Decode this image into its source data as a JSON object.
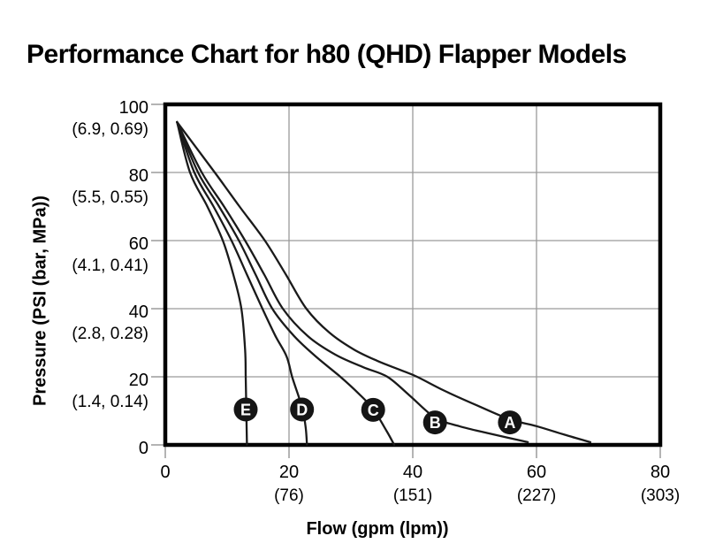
{
  "title": "Performance Chart for h80 (QHD) Flapper Models",
  "colors": {
    "background": "#ffffff",
    "text": "#000000",
    "grid": "#9a9a9a",
    "tick": "#8c8c8c",
    "frame": "#000000",
    "curve": "#1a1a1a",
    "badge_bg": "#151515",
    "badge_text": "#ffffff"
  },
  "chart_data": {
    "type": "line",
    "title": "Performance Chart for h80 (QHD) Flapper Models",
    "xlabel": "Flow (gpm (lpm))",
    "ylabel": "Pressure (PSI (bar, MPa))",
    "xlim": [
      0,
      80
    ],
    "ylim": [
      0,
      100
    ],
    "grid": true,
    "legend": "inline-badges",
    "x_ticks": [
      {
        "value": 0,
        "label": "0",
        "sub": ""
      },
      {
        "value": 20,
        "label": "20",
        "sub": "(76)"
      },
      {
        "value": 40,
        "label": "40",
        "sub": "(151)"
      },
      {
        "value": 60,
        "label": "60",
        "sub": "(227)"
      },
      {
        "value": 80,
        "label": "80",
        "sub": "(303)"
      }
    ],
    "y_ticks": [
      {
        "value": 100,
        "label": "100",
        "sub": "(6.9, 0.69)"
      },
      {
        "value": 80,
        "label": "80",
        "sub": "(5.5, 0.55)"
      },
      {
        "value": 60,
        "label": "60",
        "sub": "(4.1, 0.41)"
      },
      {
        "value": 40,
        "label": "40",
        "sub": "(2.8, 0.28)"
      },
      {
        "value": 20,
        "label": "20",
        "sub": "(1.4, 0.14)"
      },
      {
        "value": 0,
        "label": "0",
        "sub": ""
      }
    ],
    "series": [
      {
        "name": "E",
        "badge": {
          "x": 13.0,
          "y": 10.4
        },
        "points": [
          [
            1.9,
            94.8
          ],
          [
            4.0,
            80
          ],
          [
            6.8,
            70
          ],
          [
            9.3,
            60
          ],
          [
            11.0,
            50
          ],
          [
            12.3,
            40
          ],
          [
            12.9,
            28
          ],
          [
            13.0,
            20
          ],
          [
            13.1,
            10
          ],
          [
            13.2,
            0
          ]
        ]
      },
      {
        "name": "D",
        "badge": {
          "x": 22.1,
          "y": 10.4
        },
        "points": [
          [
            1.9,
            94.8
          ],
          [
            4.7,
            80
          ],
          [
            7.8,
            70
          ],
          [
            10.7,
            60
          ],
          [
            13.2,
            50
          ],
          [
            15.7,
            40
          ],
          [
            17.8,
            32
          ],
          [
            19.6,
            26
          ],
          [
            20.5,
            20
          ],
          [
            21.6,
            14
          ],
          [
            22.2,
            10.4
          ],
          [
            22.7,
            5
          ],
          [
            22.9,
            0
          ]
        ]
      },
      {
        "name": "C",
        "badge": {
          "x": 33.6,
          "y": 10.3
        },
        "points": [
          [
            1.9,
            94.8
          ],
          [
            5.3,
            80
          ],
          [
            8.7,
            70
          ],
          [
            11.9,
            60
          ],
          [
            14.6,
            50
          ],
          [
            17.3,
            40
          ],
          [
            20.8,
            32
          ],
          [
            24.3,
            26
          ],
          [
            28.3,
            20
          ],
          [
            31.3,
            15
          ],
          [
            33.6,
            10.5
          ],
          [
            35.8,
            4
          ],
          [
            37.0,
            0
          ]
        ]
      },
      {
        "name": "B",
        "badge": {
          "x": 43.6,
          "y": 6.6
        },
        "points": [
          [
            1.9,
            94.8
          ],
          [
            5.9,
            80
          ],
          [
            9.5,
            70
          ],
          [
            12.9,
            60
          ],
          [
            16.0,
            50
          ],
          [
            19.0,
            40
          ],
          [
            23.0,
            32
          ],
          [
            27.5,
            26.5
          ],
          [
            32.0,
            22.8
          ],
          [
            35.9,
            20
          ],
          [
            39.5,
            14.5
          ],
          [
            43.6,
            8
          ],
          [
            47.5,
            5.5
          ],
          [
            52.0,
            3.5
          ],
          [
            58.6,
            0.8
          ]
        ]
      },
      {
        "name": "A",
        "badge": {
          "x": 55.7,
          "y": 6.6
        },
        "points": [
          [
            1.9,
            94.8
          ],
          [
            8.0,
            80
          ],
          [
            12.0,
            70
          ],
          [
            16.1,
            60
          ],
          [
            19.5,
            50
          ],
          [
            22.8,
            40
          ],
          [
            26.5,
            33
          ],
          [
            30.5,
            28
          ],
          [
            34.5,
            24.5
          ],
          [
            38.0,
            22
          ],
          [
            40.7,
            20
          ],
          [
            45.0,
            16
          ],
          [
            50.5,
            11.5
          ],
          [
            55.7,
            7.5
          ],
          [
            60.0,
            5.5
          ],
          [
            64.5,
            3
          ],
          [
            68.7,
            0.8
          ]
        ]
      }
    ]
  }
}
